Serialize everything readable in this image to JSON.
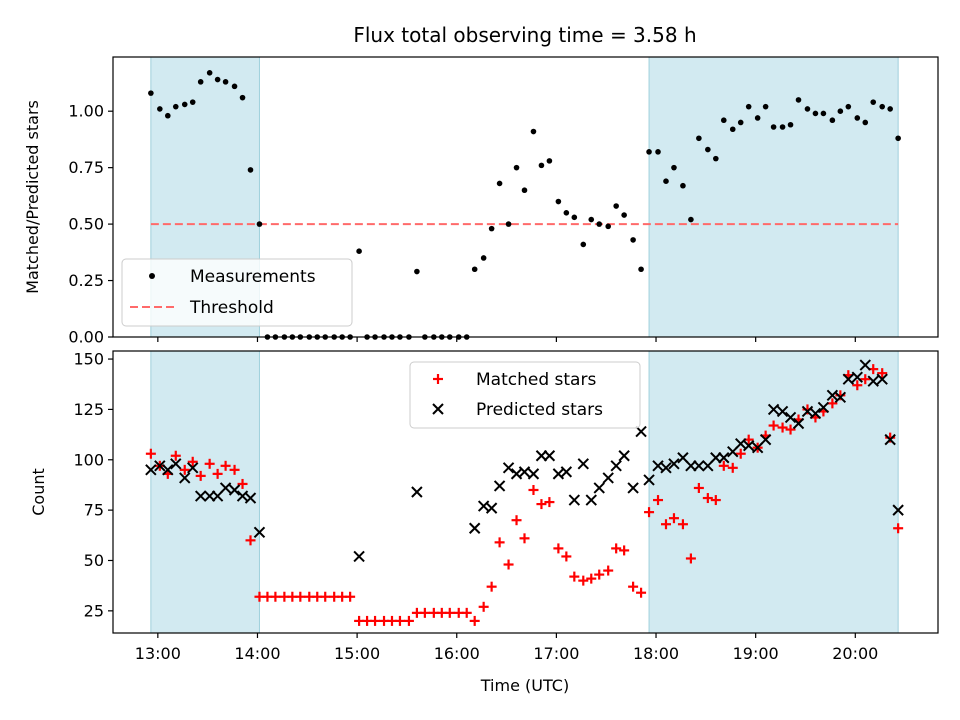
{
  "chart_data": [
    {
      "type": "scatter",
      "title": "Flux total observing time = 3.58 h",
      "xlabel": "",
      "ylabel": "Matched/Predicted stars",
      "xlim": [
        12.55,
        20.83
      ],
      "ylim": [
        0,
        1.24
      ],
      "yticks": [
        0.0,
        0.25,
        0.5,
        0.75,
        1.0
      ],
      "ytick_labels": [
        "0.00",
        "0.25",
        "0.50",
        "0.75",
        "1.00"
      ],
      "shaded_intervals": [
        [
          12.93,
          14.02
        ],
        [
          17.93,
          20.43
        ]
      ],
      "shade_color": "#add8e6",
      "legend_position": "lower left",
      "series": [
        {
          "name": "Measurements",
          "color": "#000000",
          "points": [
            [
              12.93,
              1.08
            ],
            [
              13.02,
              1.01
            ],
            [
              13.1,
              0.98
            ],
            [
              13.18,
              1.02
            ],
            [
              13.27,
              1.03
            ],
            [
              13.35,
              1.04
            ],
            [
              13.43,
              1.13
            ],
            [
              13.52,
              1.17
            ],
            [
              13.6,
              1.14
            ],
            [
              13.68,
              1.13
            ],
            [
              13.77,
              1.11
            ],
            [
              13.85,
              1.06
            ],
            [
              13.93,
              0.74
            ],
            [
              14.02,
              0.5
            ],
            [
              14.1,
              0
            ],
            [
              14.18,
              0
            ],
            [
              14.27,
              0
            ],
            [
              14.35,
              0
            ],
            [
              14.43,
              0
            ],
            [
              14.52,
              0
            ],
            [
              14.6,
              0
            ],
            [
              14.68,
              0
            ],
            [
              14.77,
              0
            ],
            [
              14.85,
              0
            ],
            [
              14.93,
              0
            ],
            [
              15.02,
              0.38
            ],
            [
              15.1,
              0
            ],
            [
              15.18,
              0
            ],
            [
              15.27,
              0
            ],
            [
              15.35,
              0
            ],
            [
              15.43,
              0
            ],
            [
              15.52,
              0
            ],
            [
              15.6,
              0.29
            ],
            [
              15.68,
              0
            ],
            [
              15.77,
              0
            ],
            [
              15.85,
              0
            ],
            [
              15.93,
              0
            ],
            [
              16.02,
              0
            ],
            [
              16.1,
              0
            ],
            [
              16.18,
              0.3
            ],
            [
              16.27,
              0.35
            ],
            [
              16.35,
              0.48
            ],
            [
              16.43,
              0.68
            ],
            [
              16.52,
              0.5
            ],
            [
              16.6,
              0.75
            ],
            [
              16.68,
              0.65
            ],
            [
              16.77,
              0.91
            ],
            [
              16.85,
              0.76
            ],
            [
              16.93,
              0.78
            ],
            [
              17.02,
              0.6
            ],
            [
              17.1,
              0.55
            ],
            [
              17.18,
              0.53
            ],
            [
              17.27,
              0.41
            ],
            [
              17.35,
              0.52
            ],
            [
              17.43,
              0.5
            ],
            [
              17.52,
              0.49
            ],
            [
              17.6,
              0.58
            ],
            [
              17.68,
              0.54
            ],
            [
              17.77,
              0.43
            ],
            [
              17.85,
              0.3
            ],
            [
              17.93,
              0.82
            ],
            [
              18.02,
              0.82
            ],
            [
              18.1,
              0.69
            ],
            [
              18.18,
              0.75
            ],
            [
              18.27,
              0.67
            ],
            [
              18.35,
              0.52
            ],
            [
              18.43,
              0.88
            ],
            [
              18.52,
              0.83
            ],
            [
              18.6,
              0.79
            ],
            [
              18.68,
              0.96
            ],
            [
              18.77,
              0.92
            ],
            [
              18.85,
              0.95
            ],
            [
              18.93,
              1.02
            ],
            [
              19.02,
              0.97
            ],
            [
              19.1,
              1.02
            ],
            [
              19.18,
              0.93
            ],
            [
              19.27,
              0.93
            ],
            [
              19.35,
              0.94
            ],
            [
              19.43,
              1.05
            ],
            [
              19.52,
              1.01
            ],
            [
              19.6,
              0.99
            ],
            [
              19.68,
              0.99
            ],
            [
              19.77,
              0.96
            ],
            [
              19.85,
              1.0
            ],
            [
              19.93,
              1.02
            ],
            [
              20.02,
              0.97
            ],
            [
              20.1,
              0.95
            ],
            [
              20.18,
              1.04
            ],
            [
              20.27,
              1.02
            ],
            [
              20.35,
              1.01
            ],
            [
              20.43,
              0.88
            ]
          ]
        },
        {
          "name": "Threshold",
          "color": "#ff6a6a",
          "style": "dashed",
          "y": 0.5,
          "x_range": [
            12.93,
            20.43
          ]
        }
      ]
    },
    {
      "type": "scatter",
      "title": "",
      "xlabel": "Time (UTC)",
      "ylabel": "Count",
      "xlim": [
        12.55,
        20.83
      ],
      "ylim": [
        14,
        154
      ],
      "yticks": [
        25,
        50,
        75,
        100,
        125,
        150
      ],
      "ytick_labels": [
        "25",
        "50",
        "75",
        "100",
        "125",
        "150"
      ],
      "xticks": [
        13,
        14,
        15,
        16,
        17,
        18,
        19,
        20
      ],
      "xtick_labels": [
        "13:00",
        "14:00",
        "15:00",
        "16:00",
        "17:00",
        "18:00",
        "19:00",
        "20:00"
      ],
      "shaded_intervals": [
        [
          12.93,
          14.02
        ],
        [
          17.93,
          20.43
        ]
      ],
      "shade_color": "#add8e6",
      "legend_position": "upper center",
      "series": [
        {
          "name": "Matched stars",
          "marker": "+",
          "color": "#ff0000",
          "points": [
            [
              12.93,
              103
            ],
            [
              13.02,
              97
            ],
            [
              13.1,
              93
            ],
            [
              13.18,
              102
            ],
            [
              13.27,
              95
            ],
            [
              13.35,
              99
            ],
            [
              13.43,
              92
            ],
            [
              13.52,
              98
            ],
            [
              13.6,
              93
            ],
            [
              13.68,
              97
            ],
            [
              13.77,
              95
            ],
            [
              13.85,
              88
            ],
            [
              13.93,
              60
            ],
            [
              14.02,
              32
            ],
            [
              14.1,
              32
            ],
            [
              14.18,
              32
            ],
            [
              14.27,
              32
            ],
            [
              14.35,
              32
            ],
            [
              14.43,
              32
            ],
            [
              14.52,
              32
            ],
            [
              14.6,
              32
            ],
            [
              14.68,
              32
            ],
            [
              14.77,
              32
            ],
            [
              14.85,
              32
            ],
            [
              14.93,
              32
            ],
            [
              15.02,
              20
            ],
            [
              15.1,
              20
            ],
            [
              15.18,
              20
            ],
            [
              15.27,
              20
            ],
            [
              15.35,
              20
            ],
            [
              15.43,
              20
            ],
            [
              15.52,
              20
            ],
            [
              15.6,
              24
            ],
            [
              15.68,
              24
            ],
            [
              15.77,
              24
            ],
            [
              15.85,
              24
            ],
            [
              15.93,
              24
            ],
            [
              16.02,
              24
            ],
            [
              16.1,
              24
            ],
            [
              16.18,
              20
            ],
            [
              16.27,
              27
            ],
            [
              16.35,
              37
            ],
            [
              16.43,
              59
            ],
            [
              16.52,
              48
            ],
            [
              16.6,
              70
            ],
            [
              16.68,
              61
            ],
            [
              16.77,
              85
            ],
            [
              16.85,
              78
            ],
            [
              16.93,
              79
            ],
            [
              17.02,
              56
            ],
            [
              17.1,
              52
            ],
            [
              17.18,
              42
            ],
            [
              17.27,
              40
            ],
            [
              17.35,
              41
            ],
            [
              17.43,
              43
            ],
            [
              17.52,
              45
            ],
            [
              17.6,
              56
            ],
            [
              17.68,
              55
            ],
            [
              17.77,
              37
            ],
            [
              17.85,
              34
            ],
            [
              17.93,
              74
            ],
            [
              18.02,
              80
            ],
            [
              18.1,
              68
            ],
            [
              18.18,
              71
            ],
            [
              18.27,
              68
            ],
            [
              18.35,
              51
            ],
            [
              18.43,
              86
            ],
            [
              18.52,
              81
            ],
            [
              18.6,
              80
            ],
            [
              18.68,
              97
            ],
            [
              18.77,
              96
            ],
            [
              18.85,
              103
            ],
            [
              18.93,
              110
            ],
            [
              19.02,
              106
            ],
            [
              19.1,
              112
            ],
            [
              19.18,
              117
            ],
            [
              19.27,
              116
            ],
            [
              19.35,
              115
            ],
            [
              19.43,
              120
            ],
            [
              19.52,
              125
            ],
            [
              19.6,
              121
            ],
            [
              19.68,
              124
            ],
            [
              19.77,
              128
            ],
            [
              19.85,
              132
            ],
            [
              19.93,
              142
            ],
            [
              20.02,
              137
            ],
            [
              20.1,
              140
            ],
            [
              20.18,
              145
            ],
            [
              20.27,
              143
            ],
            [
              20.35,
              111
            ],
            [
              20.43,
              66
            ]
          ]
        },
        {
          "name": "Predicted stars",
          "marker": "x",
          "color": "#000000",
          "points": [
            [
              12.93,
              95
            ],
            [
              13.02,
              97
            ],
            [
              13.1,
              95
            ],
            [
              13.18,
              98
            ],
            [
              13.27,
              91
            ],
            [
              13.35,
              96
            ],
            [
              13.43,
              82
            ],
            [
              13.52,
              82
            ],
            [
              13.6,
              82
            ],
            [
              13.68,
              86
            ],
            [
              13.77,
              85
            ],
            [
              13.85,
              82
            ],
            [
              13.93,
              81
            ],
            [
              14.02,
              64
            ],
            [
              15.02,
              52
            ],
            [
              15.6,
              84
            ],
            [
              16.18,
              66
            ],
            [
              16.27,
              77
            ],
            [
              16.35,
              76
            ],
            [
              16.43,
              87
            ],
            [
              16.52,
              96
            ],
            [
              16.6,
              93
            ],
            [
              16.68,
              94
            ],
            [
              16.77,
              93
            ],
            [
              16.85,
              102
            ],
            [
              16.93,
              102
            ],
            [
              17.02,
              93
            ],
            [
              17.1,
              94
            ],
            [
              17.18,
              80
            ],
            [
              17.27,
              98
            ],
            [
              17.35,
              80
            ],
            [
              17.43,
              86
            ],
            [
              17.52,
              91
            ],
            [
              17.6,
              97
            ],
            [
              17.68,
              102
            ],
            [
              17.77,
              86
            ],
            [
              17.85,
              114
            ],
            [
              17.93,
              90
            ],
            [
              18.02,
              97
            ],
            [
              18.1,
              96
            ],
            [
              18.18,
              98
            ],
            [
              18.27,
              101
            ],
            [
              18.35,
              97
            ],
            [
              18.43,
              97
            ],
            [
              18.52,
              97
            ],
            [
              18.6,
              101
            ],
            [
              18.68,
              101
            ],
            [
              18.77,
              104
            ],
            [
              18.85,
              108
            ],
            [
              18.93,
              107
            ],
            [
              19.02,
              106
            ],
            [
              19.1,
              110
            ],
            [
              19.18,
              125
            ],
            [
              19.27,
              124
            ],
            [
              19.35,
              121
            ],
            [
              19.43,
              118
            ],
            [
              19.52,
              124
            ],
            [
              19.6,
              123
            ],
            [
              19.68,
              126
            ],
            [
              19.77,
              132
            ],
            [
              19.85,
              131
            ],
            [
              19.93,
              140
            ],
            [
              20.02,
              141
            ],
            [
              20.1,
              147
            ],
            [
              20.18,
              139
            ],
            [
              20.27,
              140
            ],
            [
              20.35,
              110
            ],
            [
              20.43,
              75
            ]
          ]
        }
      ]
    }
  ]
}
